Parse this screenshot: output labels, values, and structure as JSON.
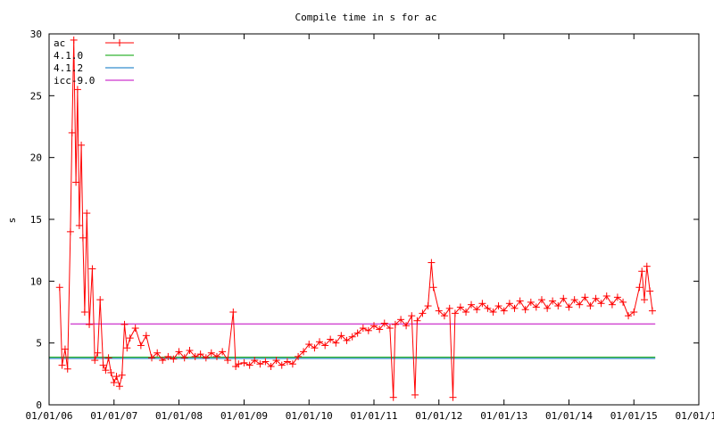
{
  "chart_data": {
    "type": "line",
    "title": "Compile time in s for ac",
    "xlabel": "",
    "ylabel": "s",
    "xlim": [
      "2006-01-01",
      "2016-01-01"
    ],
    "ylim": [
      0,
      30
    ],
    "xticks": [
      "01/01/06",
      "01/01/07",
      "01/01/08",
      "01/01/09",
      "01/01/10",
      "01/01/11",
      "01/01/12",
      "01/01/13",
      "01/01/14",
      "01/01/15",
      "01/01/16"
    ],
    "yticks": [
      0,
      5,
      10,
      15,
      20,
      25,
      30
    ],
    "grid": false,
    "legend_position": "top-left",
    "series": [
      {
        "name": "ac",
        "color": "#ff0000",
        "marker": "plus",
        "points": [
          [
            "2006-03-01",
            9.5
          ],
          [
            "2006-03-15",
            3.2
          ],
          [
            "2006-04-01",
            4.5
          ],
          [
            "2006-04-15",
            2.9
          ],
          [
            "2006-05-01",
            14.0
          ],
          [
            "2006-05-10",
            22.0
          ],
          [
            "2006-05-20",
            29.5
          ],
          [
            "2006-06-01",
            18.0
          ],
          [
            "2006-06-10",
            25.5
          ],
          [
            "2006-06-20",
            14.5
          ],
          [
            "2006-07-01",
            21.0
          ],
          [
            "2006-07-10",
            13.5
          ],
          [
            "2006-07-20",
            7.5
          ],
          [
            "2006-08-01",
            15.5
          ],
          [
            "2006-08-15",
            6.5
          ],
          [
            "2006-09-01",
            11.0
          ],
          [
            "2006-09-15",
            3.6
          ],
          [
            "2006-10-01",
            4.2
          ],
          [
            "2006-10-15",
            8.5
          ],
          [
            "2006-11-01",
            3.2
          ],
          [
            "2006-11-15",
            2.8
          ],
          [
            "2006-12-01",
            3.8
          ],
          [
            "2006-12-15",
            2.6
          ],
          [
            "2007-01-01",
            1.8
          ],
          [
            "2007-01-15",
            2.3
          ],
          [
            "2007-02-01",
            1.5
          ],
          [
            "2007-02-15",
            2.4
          ],
          [
            "2007-03-01",
            6.5
          ],
          [
            "2007-03-15",
            4.6
          ],
          [
            "2007-04-01",
            5.4
          ],
          [
            "2007-05-01",
            6.2
          ],
          [
            "2007-06-01",
            4.8
          ],
          [
            "2007-07-01",
            5.6
          ],
          [
            "2007-08-01",
            3.8
          ],
          [
            "2007-09-01",
            4.2
          ],
          [
            "2007-10-01",
            3.6
          ],
          [
            "2007-11-01",
            3.9
          ],
          [
            "2007-12-01",
            3.7
          ],
          [
            "2008-01-01",
            4.3
          ],
          [
            "2008-02-01",
            3.8
          ],
          [
            "2008-03-01",
            4.4
          ],
          [
            "2008-04-01",
            3.9
          ],
          [
            "2008-05-01",
            4.1
          ],
          [
            "2008-06-01",
            3.8
          ],
          [
            "2008-07-01",
            4.2
          ],
          [
            "2008-08-01",
            3.9
          ],
          [
            "2008-09-01",
            4.3
          ],
          [
            "2008-10-01",
            3.6
          ],
          [
            "2008-11-01",
            7.5
          ],
          [
            "2008-11-15",
            3.1
          ],
          [
            "2008-12-01",
            3.3
          ],
          [
            "2009-01-01",
            3.4
          ],
          [
            "2009-02-01",
            3.2
          ],
          [
            "2009-03-01",
            3.6
          ],
          [
            "2009-04-01",
            3.3
          ],
          [
            "2009-05-01",
            3.5
          ],
          [
            "2009-06-01",
            3.1
          ],
          [
            "2009-07-01",
            3.6
          ],
          [
            "2009-08-01",
            3.2
          ],
          [
            "2009-09-01",
            3.5
          ],
          [
            "2009-10-01",
            3.3
          ],
          [
            "2009-11-01",
            3.9
          ],
          [
            "2009-12-01",
            4.3
          ],
          [
            "2010-01-01",
            4.9
          ],
          [
            "2010-02-01",
            4.6
          ],
          [
            "2010-03-01",
            5.1
          ],
          [
            "2010-04-01",
            4.8
          ],
          [
            "2010-05-01",
            5.3
          ],
          [
            "2010-06-01",
            5.0
          ],
          [
            "2010-07-01",
            5.6
          ],
          [
            "2010-08-01",
            5.2
          ],
          [
            "2010-09-01",
            5.5
          ],
          [
            "2010-10-01",
            5.8
          ],
          [
            "2010-11-01",
            6.2
          ],
          [
            "2010-12-01",
            6.0
          ],
          [
            "2011-01-01",
            6.4
          ],
          [
            "2011-02-01",
            6.1
          ],
          [
            "2011-03-01",
            6.6
          ],
          [
            "2011-04-01",
            6.2
          ],
          [
            "2011-04-20",
            0.6
          ],
          [
            "2011-05-01",
            6.5
          ],
          [
            "2011-06-01",
            6.9
          ],
          [
            "2011-07-01",
            6.4
          ],
          [
            "2011-08-01",
            7.2
          ],
          [
            "2011-08-20",
            0.8
          ],
          [
            "2011-09-01",
            6.8
          ],
          [
            "2011-10-01",
            7.4
          ],
          [
            "2011-11-01",
            8.0
          ],
          [
            "2011-11-20",
            11.5
          ],
          [
            "2011-12-01",
            9.5
          ],
          [
            "2012-01-01",
            7.6
          ],
          [
            "2012-02-01",
            7.2
          ],
          [
            "2012-03-01",
            7.8
          ],
          [
            "2012-03-20",
            0.6
          ],
          [
            "2012-04-01",
            7.4
          ],
          [
            "2012-05-01",
            7.9
          ],
          [
            "2012-06-01",
            7.5
          ],
          [
            "2012-07-01",
            8.1
          ],
          [
            "2012-08-01",
            7.7
          ],
          [
            "2012-09-01",
            8.2
          ],
          [
            "2012-10-01",
            7.8
          ],
          [
            "2012-11-01",
            7.5
          ],
          [
            "2012-12-01",
            8.0
          ],
          [
            "2013-01-01",
            7.6
          ],
          [
            "2013-02-01",
            8.2
          ],
          [
            "2013-03-01",
            7.8
          ],
          [
            "2013-04-01",
            8.4
          ],
          [
            "2013-05-01",
            7.7
          ],
          [
            "2013-06-01",
            8.3
          ],
          [
            "2013-07-01",
            7.9
          ],
          [
            "2013-08-01",
            8.5
          ],
          [
            "2013-09-01",
            7.8
          ],
          [
            "2013-10-01",
            8.4
          ],
          [
            "2013-11-01",
            8.0
          ],
          [
            "2013-12-01",
            8.6
          ],
          [
            "2014-01-01",
            7.9
          ],
          [
            "2014-02-01",
            8.5
          ],
          [
            "2014-03-01",
            8.1
          ],
          [
            "2014-04-01",
            8.7
          ],
          [
            "2014-05-01",
            8.0
          ],
          [
            "2014-06-01",
            8.6
          ],
          [
            "2014-07-01",
            8.2
          ],
          [
            "2014-08-01",
            8.8
          ],
          [
            "2014-09-01",
            8.1
          ],
          [
            "2014-10-01",
            8.7
          ],
          [
            "2014-11-01",
            8.3
          ],
          [
            "2014-12-01",
            7.2
          ],
          [
            "2015-01-01",
            7.5
          ],
          [
            "2015-02-01",
            9.5
          ],
          [
            "2015-02-15",
            10.8
          ],
          [
            "2015-03-01",
            8.5
          ],
          [
            "2015-03-15",
            11.2
          ],
          [
            "2015-04-01",
            9.2
          ],
          [
            "2015-04-15",
            7.6
          ]
        ]
      },
      {
        "name": "4.1.0",
        "color": "#00a000",
        "points": [
          [
            "2006-01-01",
            3.85
          ],
          [
            "2015-05-01",
            3.85
          ]
        ]
      },
      {
        "name": "4.1.2",
        "color": "#0070c0",
        "points": [
          [
            "2006-01-01",
            3.75
          ],
          [
            "2015-05-01",
            3.75
          ]
        ]
      },
      {
        "name": "icc-9.0",
        "color": "#c000c0",
        "points": [
          [
            "2006-05-01",
            6.55
          ],
          [
            "2015-05-01",
            6.55
          ]
        ]
      }
    ]
  }
}
